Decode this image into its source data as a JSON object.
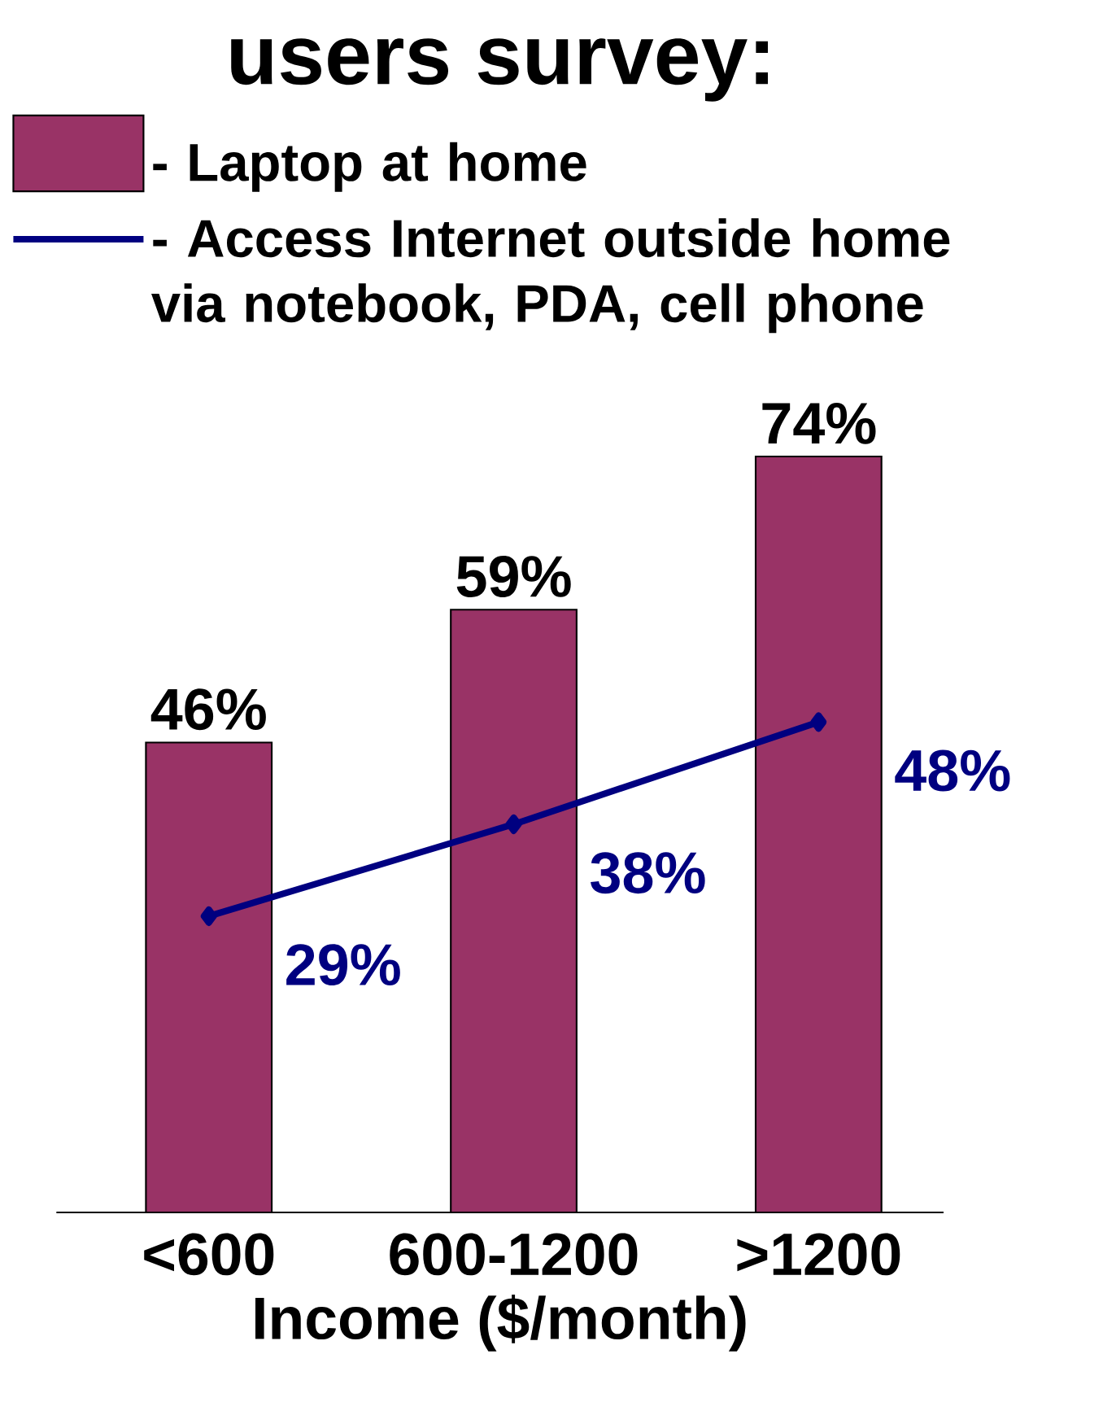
{
  "chart_data": {
    "type": "bar",
    "title": "users survey:",
    "xlabel": "Income ($/month)",
    "categories": [
      "<600",
      "600-1200",
      ">1200"
    ],
    "series": [
      {
        "name": "- Laptop at home",
        "color": "#993366",
        "values": [
          46,
          59,
          74
        ],
        "value_labels": [
          "46%",
          "59%",
          "74%"
        ]
      },
      {
        "name": "- Access Internet outside home via notebook, PDA, cell phone",
        "type": "line",
        "color": "#000080",
        "marker": "diamond",
        "values": [
          29,
          38,
          48
        ],
        "value_labels": [
          "29%",
          "38%",
          "48%"
        ]
      }
    ],
    "legend": "top left"
  }
}
